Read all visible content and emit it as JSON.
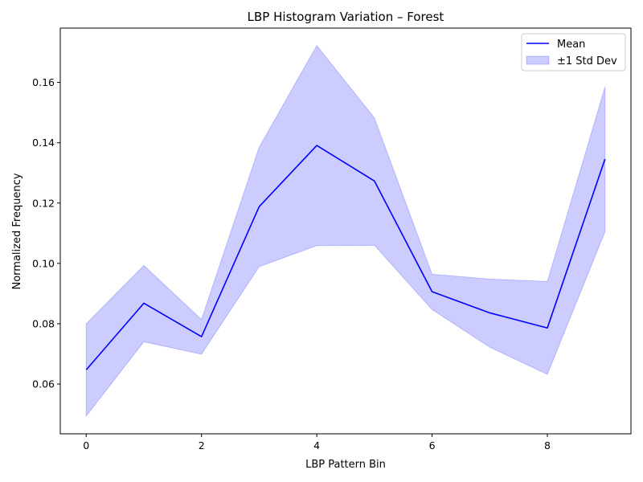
{
  "chart_data": {
    "type": "line",
    "title": "LBP Histogram Variation – Forest",
    "xlabel": "LBP Pattern Bin",
    "ylabel": "Normalized Frequency",
    "xlim": [
      -0.45,
      9.45
    ],
    "ylim": [
      0.0435,
      0.178
    ],
    "xticks": [
      0,
      2,
      4,
      6,
      8
    ],
    "xtick_labels": [
      "0",
      "2",
      "4",
      "6",
      "8"
    ],
    "yticks": [
      0.06,
      0.08,
      0.1,
      0.12,
      0.14,
      0.16
    ],
    "ytick_labels": [
      "0.06",
      "0.08",
      "0.10",
      "0.12",
      "0.14",
      "0.16"
    ],
    "grid": false,
    "legend_position": "top-right",
    "x": [
      0,
      1,
      2,
      3,
      4,
      5,
      6,
      7,
      8,
      9
    ],
    "series": [
      {
        "name": "Mean",
        "kind": "line",
        "color": "#0000ff",
        "values": [
          0.0647,
          0.0868,
          0.0757,
          0.1188,
          0.1391,
          0.1273,
          0.0906,
          0.0836,
          0.0786,
          0.1346
        ]
      },
      {
        "name": "±1 Std Dev",
        "kind": "band",
        "color": "#0000ff",
        "lower": [
          0.0494,
          0.074,
          0.0699,
          0.0989,
          0.1059,
          0.106,
          0.0847,
          0.0722,
          0.0632,
          0.1105
        ],
        "upper": [
          0.08,
          0.0993,
          0.0814,
          0.1385,
          0.1722,
          0.1482,
          0.0964,
          0.0948,
          0.094,
          0.1585
        ]
      }
    ]
  }
}
